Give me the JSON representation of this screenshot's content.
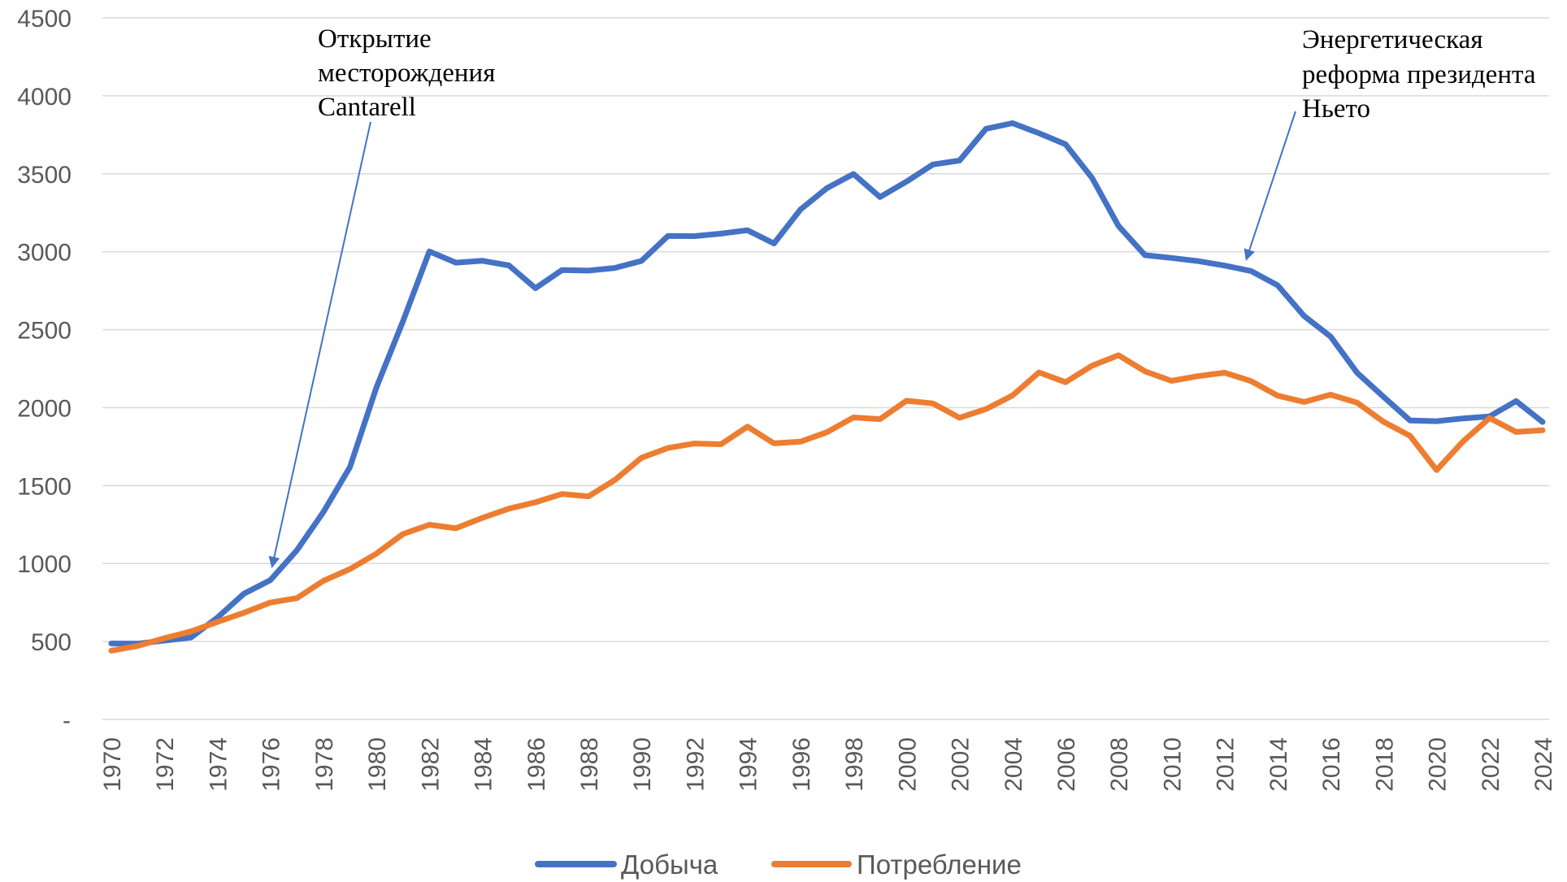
{
  "chart_data": {
    "type": "line",
    "x": [
      1970,
      1971,
      1972,
      1973,
      1974,
      1975,
      1976,
      1977,
      1978,
      1979,
      1980,
      1981,
      1982,
      1983,
      1984,
      1985,
      1986,
      1987,
      1988,
      1989,
      1990,
      1991,
      1992,
      1993,
      1994,
      1995,
      1996,
      1997,
      1998,
      1999,
      2000,
      2001,
      2002,
      2003,
      2004,
      2005,
      2006,
      2007,
      2008,
      2009,
      2010,
      2011,
      2012,
      2013,
      2014,
      2015,
      2016,
      2017,
      2018,
      2019,
      2020,
      2021,
      2022,
      2023,
      2024
    ],
    "x_tick_labels": [
      "1970",
      "1972",
      "1974",
      "1976",
      "1978",
      "1980",
      "1982",
      "1984",
      "1986",
      "1988",
      "1990",
      "1992",
      "1994",
      "1996",
      "1998",
      "2000",
      "2002",
      "2004",
      "2006",
      "2008",
      "2010",
      "2012",
      "2014",
      "2016",
      "2018",
      "2020",
      "2022",
      "2024"
    ],
    "y_tick_labels": [
      "-",
      "500",
      "1000",
      "1500",
      "2000",
      "2500",
      "3000",
      "3500",
      "4000",
      "4500"
    ],
    "ylim": [
      0,
      4500
    ],
    "grid": true,
    "legend_position": "bottom",
    "series": [
      {
        "name": "Добыча",
        "color": "#4472c4",
        "values": [
          487,
          486,
          506,
          525,
          653,
          806,
          894,
          1085,
          1330,
          1618,
          2129,
          2553,
          3002,
          2930,
          2942,
          2912,
          2766,
          2882,
          2879,
          2896,
          2941,
          3101,
          3100,
          3116,
          3138,
          3053,
          3271,
          3408,
          3499,
          3351,
          3450,
          3560,
          3585,
          3789,
          3825,
          3760,
          3689,
          3474,
          3165,
          2978,
          2960,
          2940,
          2911,
          2876,
          2785,
          2588,
          2456,
          2224,
          2069,
          1918,
          1913,
          1931,
          1944,
          2042,
          1908
        ]
      },
      {
        "name": "Потребление",
        "color": "#ed7d31",
        "values": [
          441,
          472,
          521,
          564,
          625,
          684,
          750,
          778,
          889,
          964,
          1063,
          1189,
          1249,
          1226,
          1293,
          1352,
          1393,
          1446,
          1431,
          1536,
          1678,
          1741,
          1770,
          1765,
          1878,
          1771,
          1782,
          1842,
          1937,
          1926,
          2044,
          2027,
          1935,
          1991,
          2078,
          2226,
          2163,
          2269,
          2336,
          2233,
          2172,
          2202,
          2224,
          2170,
          2077,
          2036,
          2083,
          2032,
          1909,
          1819,
          1599,
          1784,
          1933,
          1844,
          1855
        ]
      }
    ],
    "annotations": [
      {
        "lines": [
          "Открытие",
          "месторождения",
          "Cantarell"
        ],
        "x": 1976
      },
      {
        "lines": [
          "Энергетическая",
          "реформа президента",
          "Ньето"
        ],
        "x": 2013
      }
    ]
  }
}
